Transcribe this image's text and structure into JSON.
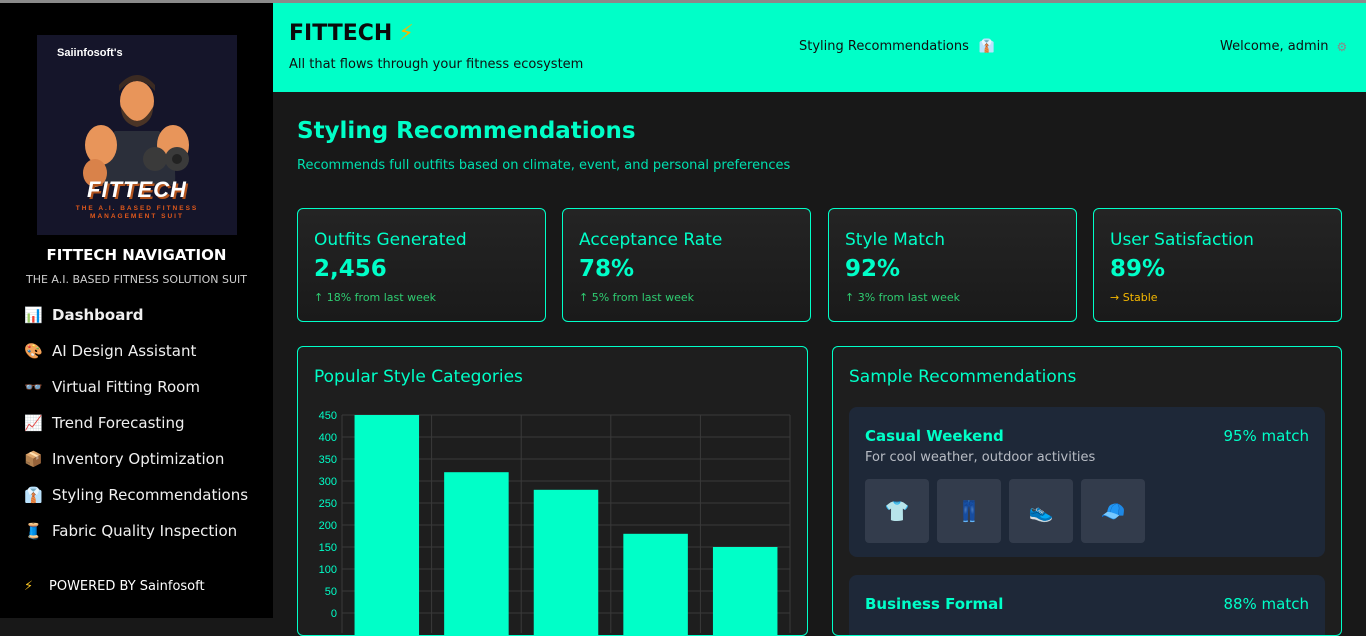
{
  "sidebar": {
    "logo": {
      "brand": "Saiinfosoft's",
      "name": "FITTECH",
      "tagline": "THE A.I. BASED FITNESS MANAGEMENT SUIT"
    },
    "title": "FITTECH NAVIGATION",
    "subtitle": "THE A.I. BASED FITNESS SOLUTION SUIT",
    "items": [
      {
        "icon": "📊",
        "icon_name": "chart-icon",
        "label": "Dashboard",
        "active": true
      },
      {
        "icon": "🎨",
        "icon_name": "palette-icon",
        "label": "AI Design Assistant"
      },
      {
        "icon": "👓",
        "icon_name": "glasses-icon",
        "label": "Virtual Fitting Room"
      },
      {
        "icon": "📈",
        "icon_name": "trend-icon",
        "label": "Trend Forecasting"
      },
      {
        "icon": "📦",
        "icon_name": "package-icon",
        "label": "Inventory Optimization"
      },
      {
        "icon": "👔",
        "icon_name": "shirt-icon",
        "label": "Styling Recommendations"
      },
      {
        "icon": "🧵",
        "icon_name": "thread-icon",
        "label": "Fabric Quality Inspection"
      }
    ],
    "powered": {
      "icon": "⚡",
      "label": "POWERED BY Sainfosoft"
    }
  },
  "header": {
    "brand": "FITTECH",
    "brand_icon": "⚡",
    "tagline": "All that flows through your fitness ecosystem",
    "page": "Styling Recommendations",
    "page_icon": "👔",
    "welcome": "Welcome, admin",
    "welcome_icon": "⚙"
  },
  "main": {
    "title": "Styling Recommendations",
    "description": "Recommends full outfits based on climate, event, and personal preferences",
    "stats": [
      {
        "label": "Outfits Generated",
        "value": "2,456",
        "change": "↑ 18% from last week",
        "status": "up"
      },
      {
        "label": "Acceptance Rate",
        "value": "78%",
        "change": "↑ 5% from last week",
        "status": "up"
      },
      {
        "label": "Style Match",
        "value": "92%",
        "change": "↑ 3% from last week",
        "status": "up"
      },
      {
        "label": "User Satisfaction",
        "value": "89%",
        "change": "→ Stable",
        "status": "stable"
      }
    ],
    "chart_panel": {
      "title": "Popular Style Categories"
    },
    "recommendations": {
      "title": "Sample Recommendations",
      "items": [
        {
          "name": "Casual Weekend",
          "match": "95% match",
          "description": "For cool weather, outdoor activities",
          "pieces": [
            {
              "icon": "👕",
              "name": "tshirt-icon"
            },
            {
              "icon": "👖",
              "name": "jeans-icon"
            },
            {
              "icon": "👟",
              "name": "sneaker-icon"
            },
            {
              "icon": "🧢",
              "name": "cap-icon"
            }
          ]
        },
        {
          "name": "Business Formal",
          "match": "88% match"
        }
      ]
    }
  },
  "colors": {
    "accent": "#00ffc8",
    "sidebar_bg": "#000000",
    "page_bg": "#181818",
    "card_bg": "#1e2838"
  },
  "chart_data": {
    "type": "bar",
    "values": [
      450,
      320,
      280,
      180,
      150
    ],
    "ylim": [
      0,
      450
    ],
    "yticks": [
      0,
      50,
      100,
      150,
      200,
      250,
      300,
      350,
      400,
      450
    ],
    "grid": true,
    "bar_color": "#00ffc8"
  }
}
